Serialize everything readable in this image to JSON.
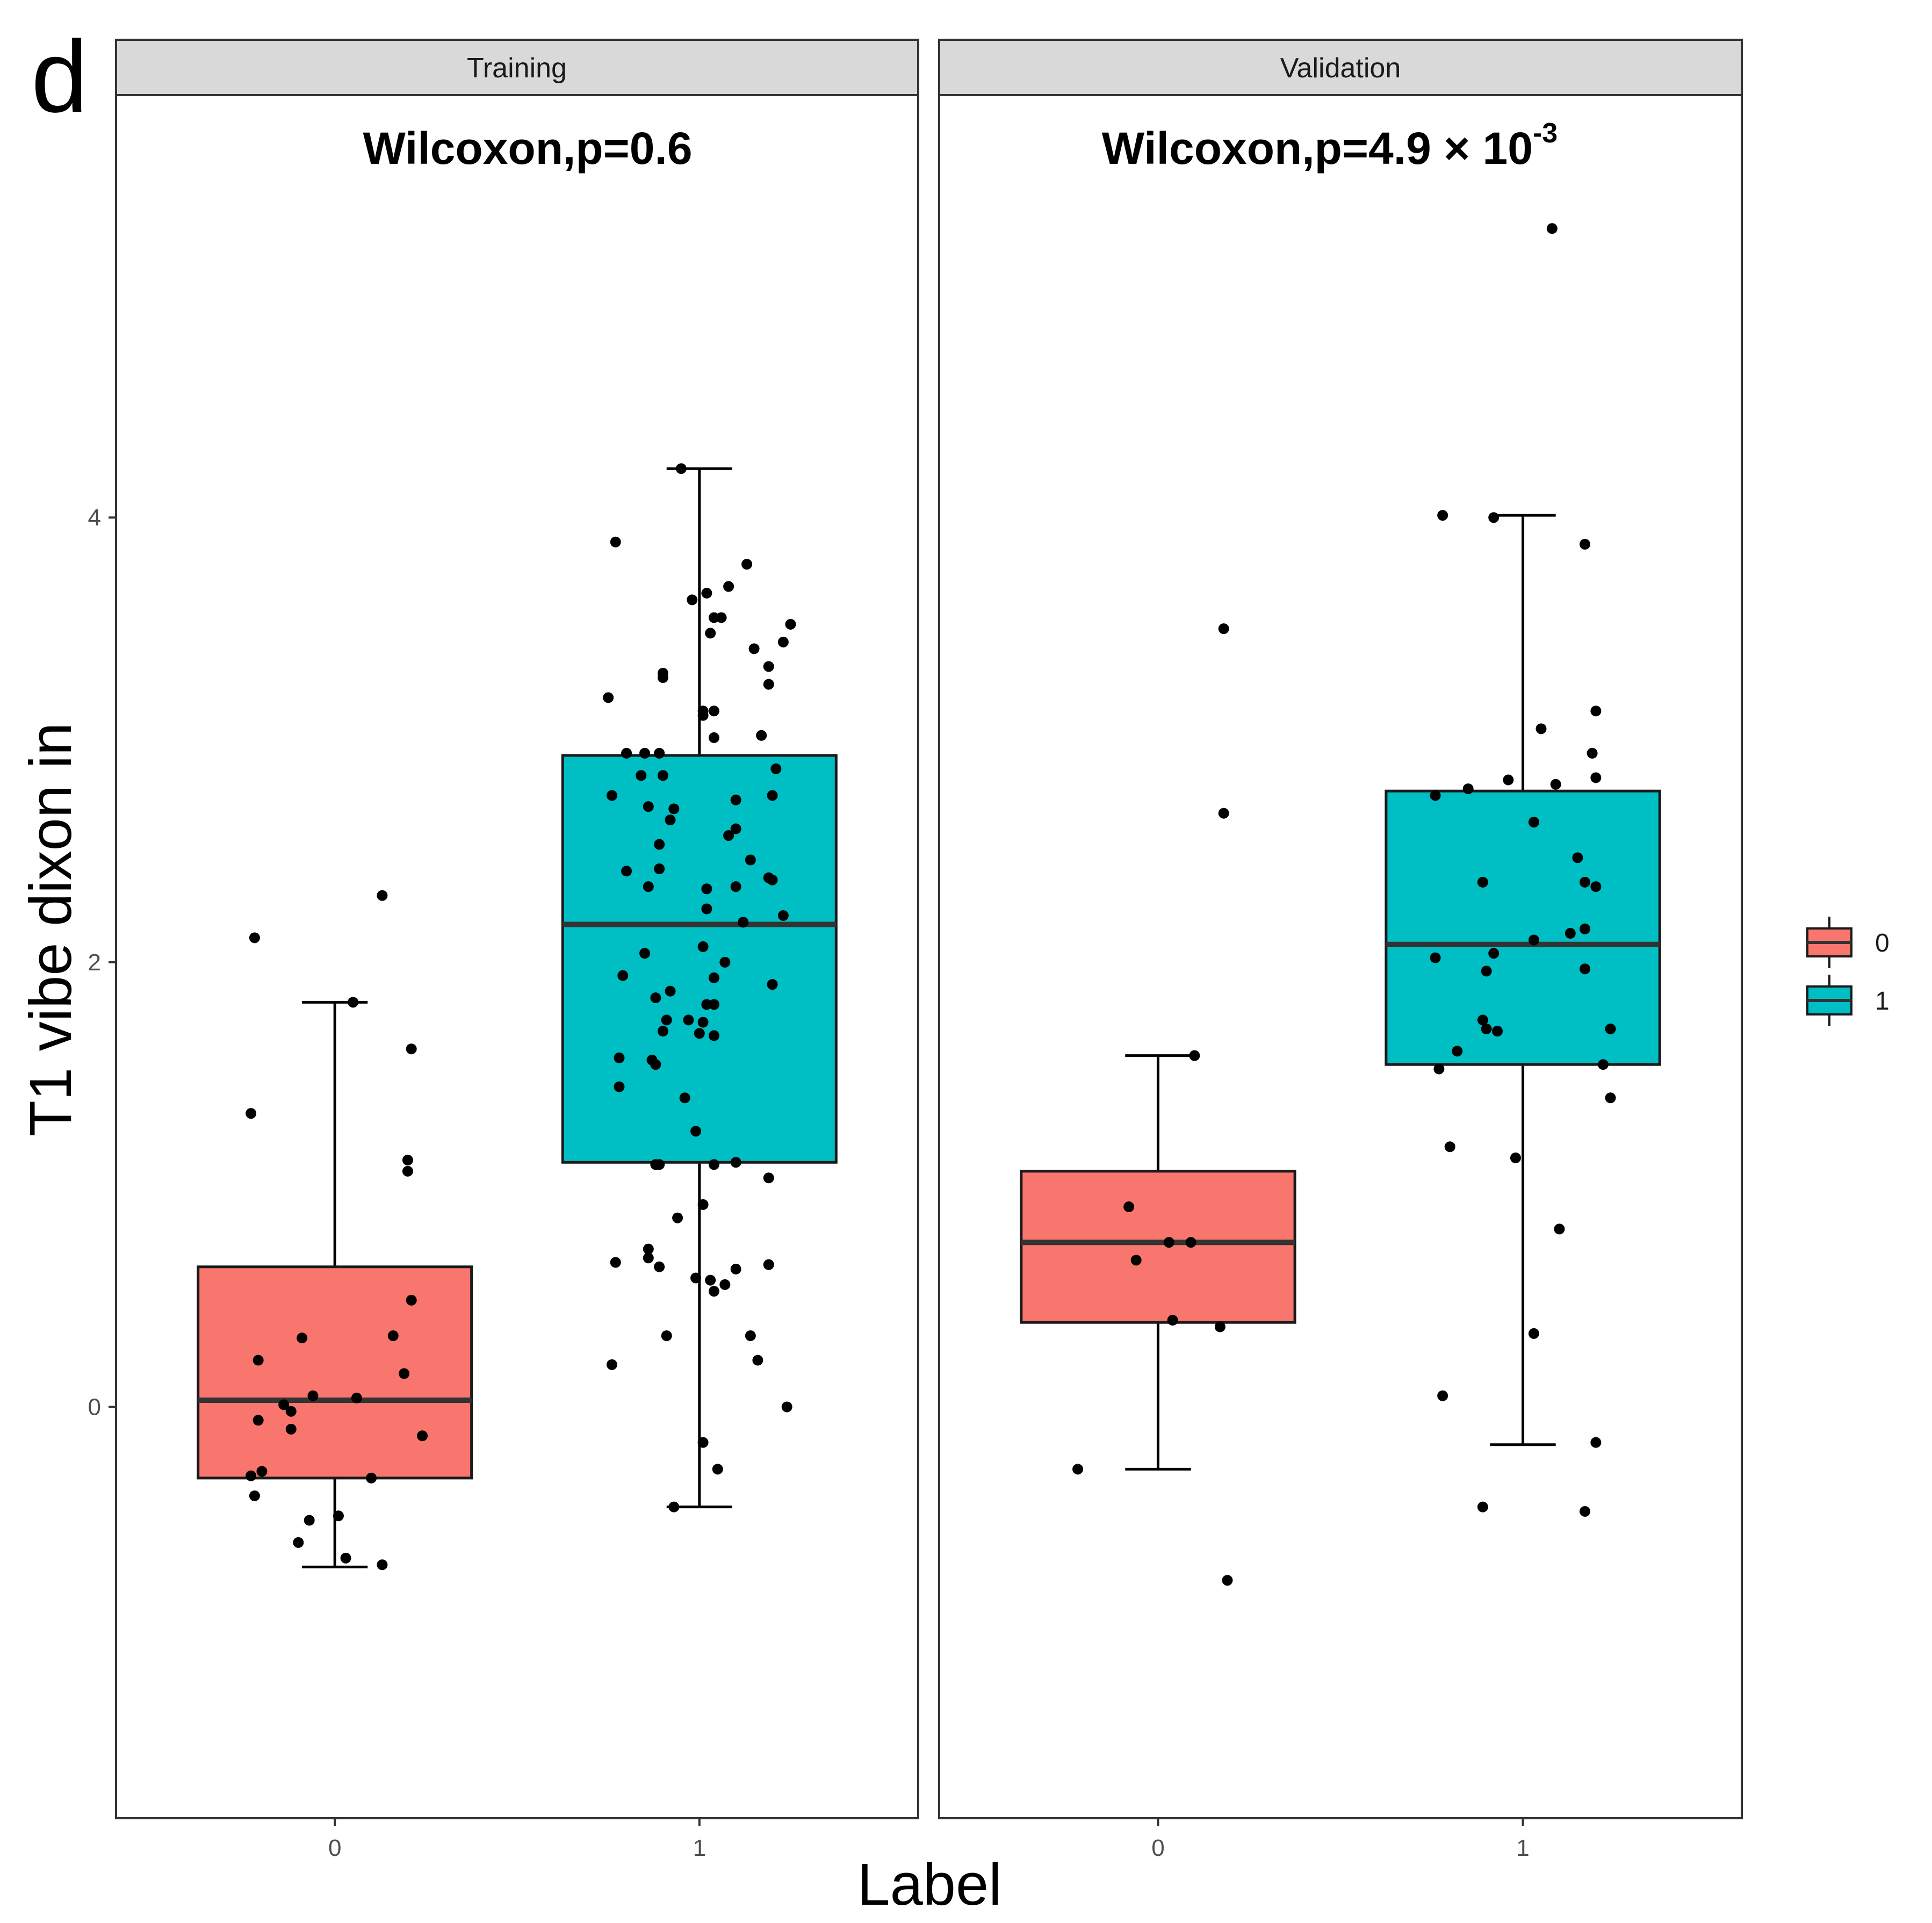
{
  "panel_letter": "d",
  "chart_data": {
    "type": "box",
    "ylabel": "T1 vibe dixon in",
    "xlabel": "Label",
    "ylim": [
      -1.85,
      5.9
    ],
    "y_ticks": [
      0,
      2,
      4
    ],
    "x_categories": [
      "0",
      "1"
    ],
    "legend": {
      "placement": "right",
      "entries": [
        {
          "label": "0",
          "color": "#F8766D"
        },
        {
          "label": "1",
          "color": "#00BFC4"
        }
      ]
    },
    "facets": [
      {
        "strip": "Training",
        "test_label": "Wilcoxon,p=0.6",
        "test_sup": "",
        "boxes": [
          {
            "group": "0",
            "color": "#F8766D",
            "q1": -0.32,
            "median": 0.03,
            "q3": 0.63,
            "whisker_low": -0.72,
            "whisker_high": 1.82
          },
          {
            "group": "1",
            "color": "#00BFC4",
            "q1": 1.1,
            "median": 2.17,
            "q3": 2.93,
            "whisker_low": -0.45,
            "whisker_high": 4.22
          }
        ],
        "points": [
          {
            "group": "0",
            "jitter": -0.22,
            "y": 2.11
          },
          {
            "group": "0",
            "jitter": 0.13,
            "y": 2.3
          },
          {
            "group": "0",
            "jitter": 0.05,
            "y": 1.82
          },
          {
            "group": "0",
            "jitter": 0.21,
            "y": 1.61
          },
          {
            "group": "0",
            "jitter": -0.23,
            "y": 1.32
          },
          {
            "group": "0",
            "jitter": 0.2,
            "y": 1.11
          },
          {
            "group": "0",
            "jitter": 0.2,
            "y": 1.06
          },
          {
            "group": "0",
            "jitter": 0.21,
            "y": 0.48
          },
          {
            "group": "0",
            "jitter": 0.16,
            "y": 0.32
          },
          {
            "group": "0",
            "jitter": -0.09,
            "y": 0.31
          },
          {
            "group": "0",
            "jitter": -0.21,
            "y": 0.21
          },
          {
            "group": "0",
            "jitter": 0.19,
            "y": 0.15
          },
          {
            "group": "0",
            "jitter": -0.06,
            "y": 0.05
          },
          {
            "group": "0",
            "jitter": 0.06,
            "y": 0.04
          },
          {
            "group": "0",
            "jitter": -0.14,
            "y": 0.01
          },
          {
            "group": "0",
            "jitter": -0.12,
            "y": -0.02
          },
          {
            "group": "0",
            "jitter": -0.21,
            "y": -0.06
          },
          {
            "group": "0",
            "jitter": -0.12,
            "y": -0.1
          },
          {
            "group": "0",
            "jitter": 0.24,
            "y": -0.13
          },
          {
            "group": "0",
            "jitter": -0.2,
            "y": -0.29
          },
          {
            "group": "0",
            "jitter": -0.23,
            "y": -0.31
          },
          {
            "group": "0",
            "jitter": 0.1,
            "y": -0.32
          },
          {
            "group": "0",
            "jitter": -0.22,
            "y": -0.4
          },
          {
            "group": "0",
            "jitter": 0.01,
            "y": -0.49
          },
          {
            "group": "0",
            "jitter": -0.07,
            "y": -0.51
          },
          {
            "group": "0",
            "jitter": -0.1,
            "y": -0.61
          },
          {
            "group": "0",
            "jitter": 0.03,
            "y": -0.68
          },
          {
            "group": "0",
            "jitter": 0.13,
            "y": -0.71
          },
          {
            "group": "1",
            "jitter": -0.05,
            "y": 4.22
          },
          {
            "group": "1",
            "jitter": -0.23,
            "y": 3.89
          },
          {
            "group": "1",
            "jitter": 0.13,
            "y": 3.79
          },
          {
            "group": "1",
            "jitter": 0.08,
            "y": 3.69
          },
          {
            "group": "1",
            "jitter": 0.02,
            "y": 3.66
          },
          {
            "group": "1",
            "jitter": -0.02,
            "y": 3.63
          },
          {
            "group": "1",
            "jitter": 0.04,
            "y": 3.55
          },
          {
            "group": "1",
            "jitter": 0.06,
            "y": 3.55
          },
          {
            "group": "1",
            "jitter": 0.25,
            "y": 3.52
          },
          {
            "group": "1",
            "jitter": 0.03,
            "y": 3.48
          },
          {
            "group": "1",
            "jitter": 0.23,
            "y": 3.44
          },
          {
            "group": "1",
            "jitter": 0.15,
            "y": 3.41
          },
          {
            "group": "1",
            "jitter": 0.19,
            "y": 3.33
          },
          {
            "group": "1",
            "jitter": -0.1,
            "y": 3.3
          },
          {
            "group": "1",
            "jitter": -0.1,
            "y": 3.28
          },
          {
            "group": "1",
            "jitter": 0.19,
            "y": 3.25
          },
          {
            "group": "1",
            "jitter": -0.25,
            "y": 3.19
          },
          {
            "group": "1",
            "jitter": 0.01,
            "y": 3.13
          },
          {
            "group": "1",
            "jitter": 0.04,
            "y": 3.13
          },
          {
            "group": "1",
            "jitter": 0.01,
            "y": 3.11
          },
          {
            "group": "1",
            "jitter": 0.17,
            "y": 3.02
          },
          {
            "group": "1",
            "jitter": 0.04,
            "y": 3.01
          },
          {
            "group": "1",
            "jitter": -0.2,
            "y": 2.94
          },
          {
            "group": "1",
            "jitter": -0.15,
            "y": 2.94
          },
          {
            "group": "1",
            "jitter": -0.11,
            "y": 2.94
          },
          {
            "group": "1",
            "jitter": 0.21,
            "y": 2.87
          },
          {
            "group": "1",
            "jitter": -0.16,
            "y": 2.84
          },
          {
            "group": "1",
            "jitter": -0.1,
            "y": 2.84
          },
          {
            "group": "1",
            "jitter": -0.24,
            "y": 2.75
          },
          {
            "group": "1",
            "jitter": 0.2,
            "y": 2.75
          },
          {
            "group": "1",
            "jitter": 0.1,
            "y": 2.73
          },
          {
            "group": "1",
            "jitter": -0.14,
            "y": 2.7
          },
          {
            "group": "1",
            "jitter": -0.07,
            "y": 2.69
          },
          {
            "group": "1",
            "jitter": -0.08,
            "y": 2.64
          },
          {
            "group": "1",
            "jitter": 0.1,
            "y": 2.6
          },
          {
            "group": "1",
            "jitter": 0.08,
            "y": 2.57
          },
          {
            "group": "1",
            "jitter": -0.11,
            "y": 2.53
          },
          {
            "group": "1",
            "jitter": 0.14,
            "y": 2.46
          },
          {
            "group": "1",
            "jitter": -0.11,
            "y": 2.42
          },
          {
            "group": "1",
            "jitter": -0.2,
            "y": 2.41
          },
          {
            "group": "1",
            "jitter": 0.19,
            "y": 2.38
          },
          {
            "group": "1",
            "jitter": 0.2,
            "y": 2.37
          },
          {
            "group": "1",
            "jitter": 0.1,
            "y": 2.34
          },
          {
            "group": "1",
            "jitter": -0.14,
            "y": 2.34
          },
          {
            "group": "1",
            "jitter": 0.02,
            "y": 2.33
          },
          {
            "group": "1",
            "jitter": 0.02,
            "y": 2.24
          },
          {
            "group": "1",
            "jitter": 0.23,
            "y": 2.21
          },
          {
            "group": "1",
            "jitter": 0.12,
            "y": 2.18
          },
          {
            "group": "1",
            "jitter": 0.01,
            "y": 2.07
          },
          {
            "group": "1",
            "jitter": -0.15,
            "y": 2.04
          },
          {
            "group": "1",
            "jitter": 0.07,
            "y": 2.0
          },
          {
            "group": "1",
            "jitter": -0.21,
            "y": 1.94
          },
          {
            "group": "1",
            "jitter": 0.04,
            "y": 1.93
          },
          {
            "group": "1",
            "jitter": 0.2,
            "y": 1.9
          },
          {
            "group": "1",
            "jitter": -0.08,
            "y": 1.87
          },
          {
            "group": "1",
            "jitter": -0.12,
            "y": 1.84
          },
          {
            "group": "1",
            "jitter": 0.02,
            "y": 1.81
          },
          {
            "group": "1",
            "jitter": 0.04,
            "y": 1.81
          },
          {
            "group": "1",
            "jitter": -0.09,
            "y": 1.74
          },
          {
            "group": "1",
            "jitter": -0.03,
            "y": 1.74
          },
          {
            "group": "1",
            "jitter": 0.01,
            "y": 1.73
          },
          {
            "group": "1",
            "jitter": -0.1,
            "y": 1.69
          },
          {
            "group": "1",
            "jitter": 0.0,
            "y": 1.68
          },
          {
            "group": "1",
            "jitter": 0.04,
            "y": 1.67
          },
          {
            "group": "1",
            "jitter": -0.22,
            "y": 1.57
          },
          {
            "group": "1",
            "jitter": -0.13,
            "y": 1.56
          },
          {
            "group": "1",
            "jitter": -0.12,
            "y": 1.54
          },
          {
            "group": "1",
            "jitter": -0.22,
            "y": 1.44
          },
          {
            "group": "1",
            "jitter": -0.04,
            "y": 1.39
          },
          {
            "group": "1",
            "jitter": -0.01,
            "y": 1.24
          },
          {
            "group": "1",
            "jitter": -0.12,
            "y": 1.09
          },
          {
            "group": "1",
            "jitter": -0.11,
            "y": 1.09
          },
          {
            "group": "1",
            "jitter": 0.04,
            "y": 1.09
          },
          {
            "group": "1",
            "jitter": 0.1,
            "y": 1.1
          },
          {
            "group": "1",
            "jitter": 0.19,
            "y": 1.03
          },
          {
            "group": "1",
            "jitter": 0.01,
            "y": 0.91
          },
          {
            "group": "1",
            "jitter": -0.06,
            "y": 0.85
          },
          {
            "group": "1",
            "jitter": -0.14,
            "y": 0.71
          },
          {
            "group": "1",
            "jitter": -0.23,
            "y": 0.65
          },
          {
            "group": "1",
            "jitter": -0.14,
            "y": 0.67
          },
          {
            "group": "1",
            "jitter": -0.11,
            "y": 0.63
          },
          {
            "group": "1",
            "jitter": 0.19,
            "y": 0.64
          },
          {
            "group": "1",
            "jitter": 0.1,
            "y": 0.62
          },
          {
            "group": "1",
            "jitter": -0.01,
            "y": 0.58
          },
          {
            "group": "1",
            "jitter": 0.03,
            "y": 0.57
          },
          {
            "group": "1",
            "jitter": 0.07,
            "y": 0.55
          },
          {
            "group": "1",
            "jitter": 0.04,
            "y": 0.52
          },
          {
            "group": "1",
            "jitter": -0.09,
            "y": 0.32
          },
          {
            "group": "1",
            "jitter": 0.14,
            "y": 0.32
          },
          {
            "group": "1",
            "jitter": 0.16,
            "y": 0.21
          },
          {
            "group": "1",
            "jitter": -0.24,
            "y": 0.19
          },
          {
            "group": "1",
            "jitter": 0.24,
            "y": 0.0
          },
          {
            "group": "1",
            "jitter": 0.01,
            "y": -0.16
          },
          {
            "group": "1",
            "jitter": 0.05,
            "y": -0.28
          },
          {
            "group": "1",
            "jitter": -0.07,
            "y": -0.45
          }
        ]
      },
      {
        "strip": "Validation",
        "test_label": "Wilcoxon,p=4.9 × 10",
        "test_sup": "-3",
        "boxes": [
          {
            "group": "0",
            "color": "#F8766D",
            "q1": 0.38,
            "median": 0.74,
            "q3": 1.06,
            "whisker_low": -0.28,
            "whisker_high": 1.58
          },
          {
            "group": "1",
            "color": "#00BFC4",
            "q1": 1.54,
            "median": 2.08,
            "q3": 2.77,
            "whisker_low": -0.17,
            "whisker_high": 4.01
          }
        ],
        "points": [
          {
            "group": "0",
            "jitter": 0.18,
            "y": 3.5
          },
          {
            "group": "0",
            "jitter": 0.18,
            "y": 2.67
          },
          {
            "group": "0",
            "jitter": 0.1,
            "y": 1.58
          },
          {
            "group": "0",
            "jitter": -0.08,
            "y": 0.9
          },
          {
            "group": "0",
            "jitter": 0.03,
            "y": 0.74
          },
          {
            "group": "0",
            "jitter": 0.09,
            "y": 0.74
          },
          {
            "group": "0",
            "jitter": -0.06,
            "y": 0.66
          },
          {
            "group": "0",
            "jitter": 0.04,
            "y": 0.39
          },
          {
            "group": "0",
            "jitter": 0.17,
            "y": 0.36
          },
          {
            "group": "0",
            "jitter": -0.22,
            "y": -0.28
          },
          {
            "group": "0",
            "jitter": 0.19,
            "y": -0.78
          },
          {
            "group": "1",
            "jitter": 0.08,
            "y": 5.3
          },
          {
            "group": "1",
            "jitter": -0.22,
            "y": 4.01
          },
          {
            "group": "1",
            "jitter": -0.08,
            "y": 4.0
          },
          {
            "group": "1",
            "jitter": 0.17,
            "y": 3.88
          },
          {
            "group": "1",
            "jitter": 0.2,
            "y": 3.13
          },
          {
            "group": "1",
            "jitter": 0.05,
            "y": 3.05
          },
          {
            "group": "1",
            "jitter": 0.19,
            "y": 2.94
          },
          {
            "group": "1",
            "jitter": 0.2,
            "y": 2.83
          },
          {
            "group": "1",
            "jitter": -0.04,
            "y": 2.82
          },
          {
            "group": "1",
            "jitter": 0.09,
            "y": 2.8
          },
          {
            "group": "1",
            "jitter": -0.15,
            "y": 2.78
          },
          {
            "group": "1",
            "jitter": -0.24,
            "y": 2.75
          },
          {
            "group": "1",
            "jitter": 0.03,
            "y": 2.63
          },
          {
            "group": "1",
            "jitter": 0.15,
            "y": 2.47
          },
          {
            "group": "1",
            "jitter": -0.11,
            "y": 2.36
          },
          {
            "group": "1",
            "jitter": 0.17,
            "y": 2.36
          },
          {
            "group": "1",
            "jitter": 0.2,
            "y": 2.34
          },
          {
            "group": "1",
            "jitter": 0.17,
            "y": 2.15
          },
          {
            "group": "1",
            "jitter": 0.13,
            "y": 2.13
          },
          {
            "group": "1",
            "jitter": 0.03,
            "y": 2.1
          },
          {
            "group": "1",
            "jitter": -0.08,
            "y": 2.04
          },
          {
            "group": "1",
            "jitter": -0.24,
            "y": 2.02
          },
          {
            "group": "1",
            "jitter": -0.1,
            "y": 1.96
          },
          {
            "group": "1",
            "jitter": 0.17,
            "y": 1.97
          },
          {
            "group": "1",
            "jitter": -0.11,
            "y": 1.74
          },
          {
            "group": "1",
            "jitter": -0.1,
            "y": 1.7
          },
          {
            "group": "1",
            "jitter": -0.07,
            "y": 1.69
          },
          {
            "group": "1",
            "jitter": 0.24,
            "y": 1.7
          },
          {
            "group": "1",
            "jitter": -0.18,
            "y": 1.6
          },
          {
            "group": "1",
            "jitter": -0.23,
            "y": 1.52
          },
          {
            "group": "1",
            "jitter": 0.22,
            "y": 1.54
          },
          {
            "group": "1",
            "jitter": 0.24,
            "y": 1.39
          },
          {
            "group": "1",
            "jitter": -0.2,
            "y": 1.17
          },
          {
            "group": "1",
            "jitter": -0.02,
            "y": 1.12
          },
          {
            "group": "1",
            "jitter": 0.1,
            "y": 0.8
          },
          {
            "group": "1",
            "jitter": 0.03,
            "y": 0.33
          },
          {
            "group": "1",
            "jitter": -0.22,
            "y": 0.05
          },
          {
            "group": "1",
            "jitter": 0.2,
            "y": -0.16
          },
          {
            "group": "1",
            "jitter": -0.11,
            "y": -0.45
          },
          {
            "group": "1",
            "jitter": 0.17,
            "y": -0.47
          }
        ]
      }
    ]
  }
}
